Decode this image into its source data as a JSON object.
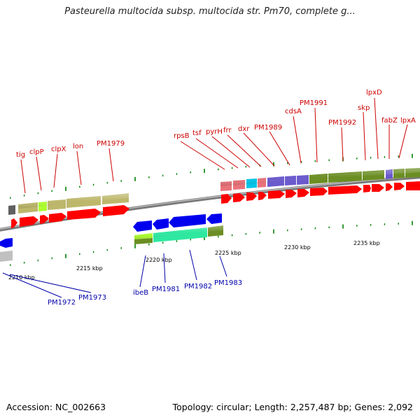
{
  "title": "Pasteurella multocida subsp. multocida str. Pm70, complete g...",
  "footer": {
    "accession": "Accession: NC_002663",
    "topology": "Topology: circular; Length: 2,257,487 bp; Genes: 2,092"
  },
  "colors": {
    "backbone": "#8c8c8c",
    "forward_cds": "#ff0000",
    "reverse_cds": "#0000ee",
    "khaki_category": "#bdb76b",
    "olive_category": "#6b8e23",
    "slate_category": "#6a5acd",
    "salmon_category": "#e9737a",
    "aqua_category": "#00c5e8",
    "spring_category": "#2ee8a0",
    "lime_category": "#adff2f",
    "grey_category": "#909090",
    "tick": "#008000"
  },
  "kbp_labels": [
    {
      "text": "2210 kbp"
    },
    {
      "text": "2215 kbp"
    },
    {
      "text": "2220 kbp"
    },
    {
      "text": "2225 kbp"
    },
    {
      "text": "2230 kbp"
    },
    {
      "text": "2235 kbp"
    }
  ],
  "forward_labels": [
    {
      "text": "tig"
    },
    {
      "text": "clpP"
    },
    {
      "text": "clpX"
    },
    {
      "text": "lon"
    },
    {
      "text": "PM1979"
    },
    {
      "text": "rpsB"
    },
    {
      "text": "tsf"
    },
    {
      "text": "pyrH"
    },
    {
      "text": "frr"
    },
    {
      "text": "dxr"
    },
    {
      "text": "PM1989"
    },
    {
      "text": "cdsA"
    },
    {
      "text": "PM1991"
    },
    {
      "text": "PM1992"
    },
    {
      "text": "skp"
    },
    {
      "text": "lpxD"
    },
    {
      "text": "fabZ"
    },
    {
      "text": "lpxA"
    }
  ],
  "reverse_labels": [
    {
      "text": "PM1972"
    },
    {
      "text": "PM1973"
    },
    {
      "text": "ibeB"
    },
    {
      "text": "PM1981"
    },
    {
      "text": "PM1982"
    },
    {
      "text": "PM1983"
    }
  ]
}
